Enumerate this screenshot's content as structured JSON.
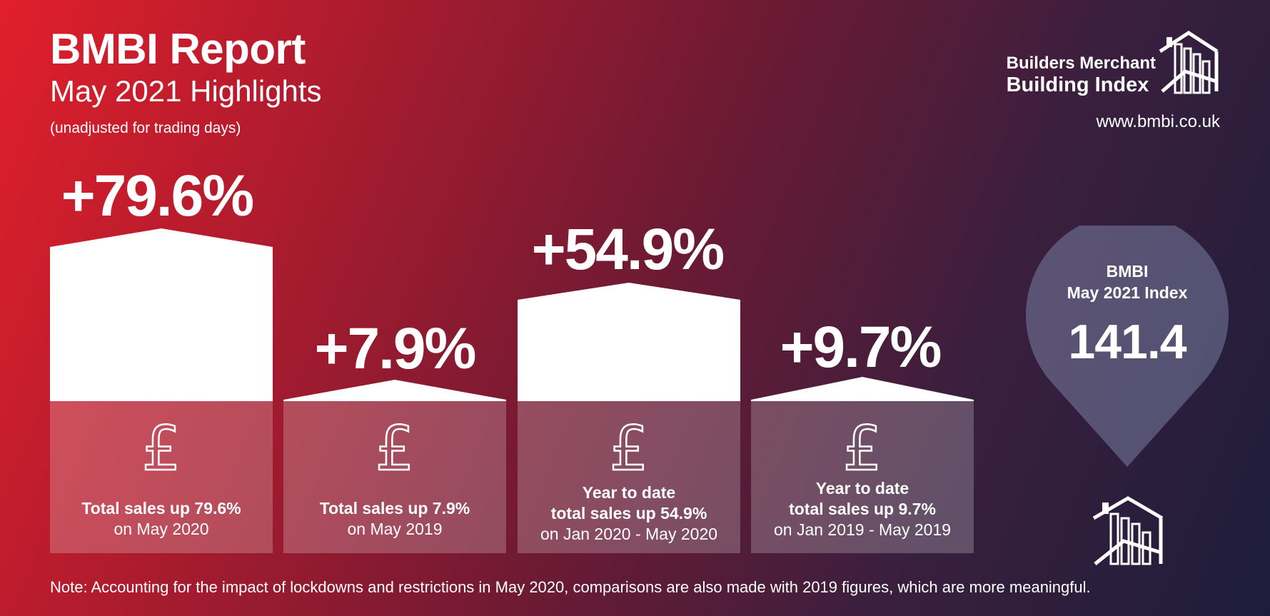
{
  "header": {
    "title": "BMBI Report",
    "subtitle": "May 2021 Highlights",
    "note": "(unadjusted for trading days)"
  },
  "logo": {
    "line1": "Builders Merchant",
    "line2": "Building Index",
    "url": "www.bmbi.co.uk",
    "icon": "house-chart-icon"
  },
  "cards": [
    {
      "value": "+79.6%",
      "caption_bold": [
        "Total sales up 79.6%"
      ],
      "caption": "on May 2020"
    },
    {
      "value": "+7.9%",
      "caption_bold": [
        "Total sales up 7.9%"
      ],
      "caption": "on May 2019"
    },
    {
      "value": "+54.9%",
      "caption_bold": [
        "Year to date",
        "total sales up 54.9%"
      ],
      "caption": "on Jan 2020 - May 2020"
    },
    {
      "value": "+9.7%",
      "caption_bold": [
        "Year to date",
        "total sales up 9.7%"
      ],
      "caption": "on Jan 2019 - May 2019"
    }
  ],
  "index": {
    "label_line1": "BMBI",
    "label_line2": "May 2021 Index",
    "value": "141.4"
  },
  "footnote": "Note: Accounting for the impact of lockdowns and restrictions in May 2020, comparisons are also made with 2019 figures, which are more meaningful.",
  "colors": {
    "gradient_start": "#e11f2b",
    "gradient_end": "#1d1d3a",
    "text": "#ffffff"
  }
}
